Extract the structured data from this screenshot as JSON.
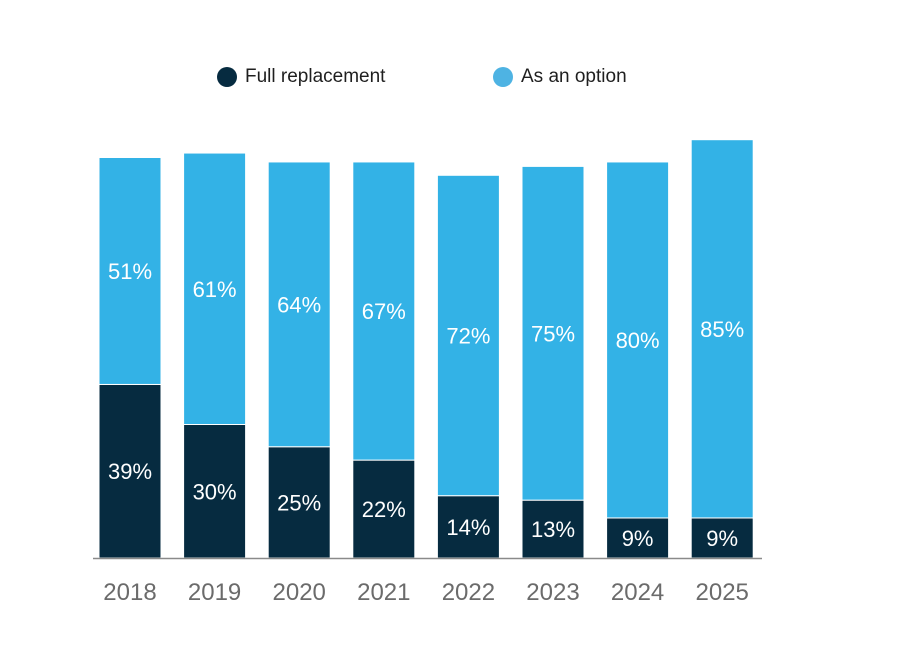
{
  "chart_data": {
    "type": "bar",
    "stacked": true,
    "categories": [
      "2018",
      "2019",
      "2020",
      "2021",
      "2022",
      "2023",
      "2024",
      "2025"
    ],
    "series": [
      {
        "name": "Full replacement",
        "color": "#062b40",
        "values": [
          39,
          30,
          25,
          22,
          14,
          13,
          9,
          9
        ]
      },
      {
        "name": "As an option",
        "color": "#33b2e6",
        "values": [
          51,
          61,
          64,
          67,
          72,
          75,
          80,
          85
        ]
      }
    ],
    "value_suffix": "%",
    "legend_position": "top-center",
    "ylim": [
      0,
      94
    ]
  },
  "legend": {
    "items": [
      {
        "label": "Full replacement",
        "color": "#062b40"
      },
      {
        "label": "As an option",
        "color": "#4eb3e3"
      }
    ]
  }
}
